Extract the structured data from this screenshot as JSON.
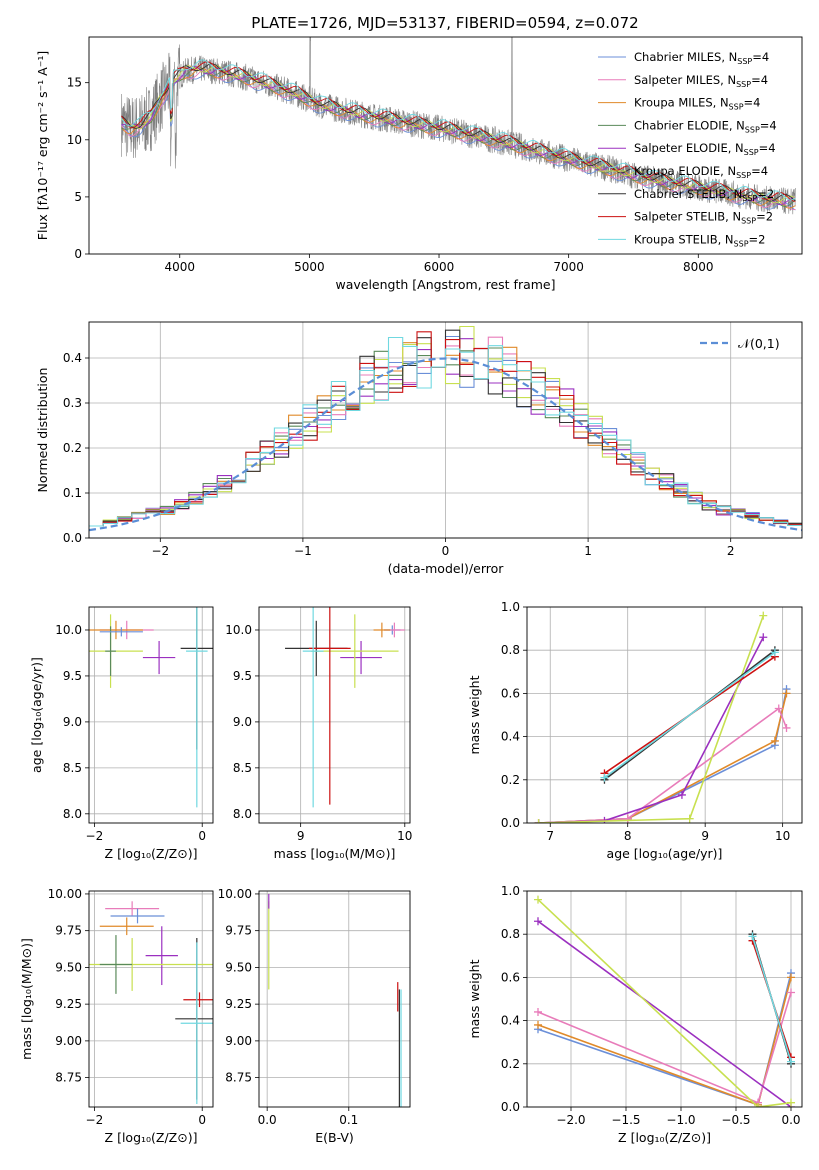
{
  "figure_title": "PLATE=1726, MJD=53137, FIBERID=0594, z=0.072",
  "colors": {
    "chabrier_miles": "#6b8fd8",
    "salpeter_miles": "#e87cba",
    "kroupa_miles": "#e08a2a",
    "chabrier_elodie": "#5a8a5a",
    "salpeter_elodie": "#9b30c0",
    "kroupa_elodie": "#c8e050",
    "chabrier_stelib": "#333333",
    "salpeter_stelib": "#cc1111",
    "kroupa_stelib": "#70d8e0",
    "normal": "#5b8ed6",
    "data": "#808080"
  },
  "legend_spectrum": [
    {
      "key": "chabrier_miles",
      "label": "Chabrier MILES, N",
      "sub": "SSP",
      "suffix": "=4"
    },
    {
      "key": "salpeter_miles",
      "label": "Salpeter MILES, N",
      "sub": "SSP",
      "suffix": "=4"
    },
    {
      "key": "kroupa_miles",
      "label": "Kroupa MILES, N",
      "sub": "SSP",
      "suffix": "=4"
    },
    {
      "key": "chabrier_elodie",
      "label": "Chabrier ELODIE, N",
      "sub": "SSP",
      "suffix": "=4"
    },
    {
      "key": "salpeter_elodie",
      "label": "Salpeter ELODIE, N",
      "sub": "SSP",
      "suffix": "=4"
    },
    {
      "key": "kroupa_elodie",
      "label": "Kroupa ELODIE, N",
      "sub": "SSP",
      "suffix": "=4"
    },
    {
      "key": "chabrier_stelib",
      "label": "Chabrier STELIB, N",
      "sub": "SSP",
      "suffix": "=2"
    },
    {
      "key": "salpeter_stelib",
      "label": "Salpeter STELIB, N",
      "sub": "SSP",
      "suffix": "=2"
    },
    {
      "key": "kroupa_stelib",
      "label": "Kroupa STELIB, N",
      "sub": "SSP",
      "suffix": "=2"
    }
  ],
  "chart_data": [
    {
      "id": "spectrum",
      "type": "line",
      "title": "PLATE=1726, MJD=53137, FIBERID=0594, z=0.072",
      "xlabel": "wavelength [Angstrom, rest frame]",
      "ylabel": "Flux [fλ10⁻¹⁷ erg cm⁻² s⁻¹ A⁻¹]",
      "xlim": [
        3300,
        8800
      ],
      "ylim": [
        0,
        19
      ],
      "xticks": [
        4000,
        5000,
        6000,
        7000,
        8000
      ],
      "yticks": [
        0,
        5,
        10,
        15
      ],
      "grid": false,
      "legend": "top-right",
      "model_continuum": {
        "x": [
          3550,
          3620,
          3700,
          3780,
          3850,
          3950,
          4050,
          4150,
          4300,
          4500,
          4700,
          4900,
          5100,
          5300,
          5500,
          5700,
          5900,
          6100,
          6300,
          6500,
          6700,
          6900,
          7100,
          7300,
          7500,
          7700,
          7900,
          8100,
          8300,
          8500,
          8700
        ],
        "y": [
          11.5,
          11.0,
          11.2,
          12.0,
          13.5,
          15.2,
          16.0,
          16.2,
          16.0,
          15.5,
          14.8,
          14.0,
          13.0,
          12.5,
          12.0,
          11.6,
          11.2,
          10.8,
          10.3,
          9.8,
          9.2,
          8.6,
          8.0,
          7.5,
          6.9,
          6.4,
          6.0,
          5.6,
          5.2,
          4.8,
          4.6
        ]
      }
    },
    {
      "id": "residuals",
      "type": "area",
      "xlabel": "(data-model)/error",
      "ylabel": "Normed distribution",
      "xlim": [
        -2.5,
        2.5
      ],
      "ylim": [
        0,
        0.48
      ],
      "xticks": [
        -2,
        -1,
        0,
        1,
        2
      ],
      "yticks": [
        0.0,
        0.1,
        0.2,
        0.3,
        0.4
      ],
      "grid": true,
      "legend": "top-right",
      "legend_label": "𝒩(0,1)",
      "bin_width": 0.1
    },
    {
      "id": "age_vs_Z",
      "type": "scatter",
      "xlabel": "Z [log₁₀(Z/Z⊙)]",
      "ylabel": "age  [log₁₀(age/yr)]",
      "xlim": [
        -2.1,
        0.2
      ],
      "ylim": [
        7.9,
        10.25
      ],
      "xticks": [
        -2,
        0
      ],
      "yticks": [
        8.0,
        8.5,
        9.0,
        9.5,
        10.0
      ],
      "grid": true,
      "points": [
        {
          "key": "salpeter_miles",
          "x": -1.4,
          "xerr": 0.5,
          "y": 10.0,
          "yerr": 0.1
        },
        {
          "key": "kroupa_miles",
          "x": -1.6,
          "xerr": 0.5,
          "y": 10.0,
          "yerr": 0.1
        },
        {
          "key": "salpeter_elodie",
          "x": -0.8,
          "xerr": 0.3,
          "y": 9.7,
          "yerr": 0.18
        },
        {
          "key": "kroupa_elodie",
          "x": -1.7,
          "xerr": 0.6,
          "y": 9.77,
          "yerr": 0.4
        },
        {
          "key": "chabrier_elodie",
          "x": -1.7,
          "xerr": 0.1,
          "y": 9.77,
          "yerr": 0.27
        },
        {
          "key": "chabrier_stelib",
          "x": -0.1,
          "xerr": 0.3,
          "y": 9.8,
          "yerr": 1.1
        },
        {
          "key": "kroupa_stelib",
          "x": -0.1,
          "xerr": 0.2,
          "y": 9.77,
          "yerr": 1.7
        },
        {
          "key": "chabrier_miles",
          "x": -1.5,
          "xerr": 0.4,
          "y": 9.98,
          "yerr": 0.05
        }
      ]
    },
    {
      "id": "age_vs_mass",
      "type": "scatter",
      "xlabel": "mass [log₁₀(M/M⊙)]",
      "ylabel": "",
      "xlim": [
        8.6,
        10.05
      ],
      "ylim": [
        7.9,
        10.25
      ],
      "xticks": [
        9,
        10
      ],
      "yticks": [
        8.0,
        8.5,
        9.0,
        9.5,
        10.0
      ],
      "grid": true,
      "points": [
        {
          "key": "chabrier_miles",
          "x": 9.88,
          "xerr": 0.08,
          "y": 10.0,
          "yerr": 0.05
        },
        {
          "key": "salpeter_miles",
          "x": 9.9,
          "xerr": 0.1,
          "y": 10.0,
          "yerr": 0.08
        },
        {
          "key": "kroupa_miles",
          "x": 9.78,
          "xerr": 0.08,
          "y": 10.0,
          "yerr": 0.08
        },
        {
          "key": "salpeter_elodie",
          "x": 9.58,
          "xerr": 0.2,
          "y": 9.7,
          "yerr": 0.18
        },
        {
          "key": "kroupa_elodie",
          "x": 9.52,
          "xerr": 0.42,
          "y": 9.77,
          "yerr": 0.4
        },
        {
          "key": "chabrier_stelib",
          "x": 9.15,
          "xerr": 0.3,
          "y": 9.8,
          "yerr": 0.3
        },
        {
          "key": "salpeter_stelib",
          "x": 9.28,
          "xerr": 0.2,
          "y": 9.8,
          "yerr": 1.7
        },
        {
          "key": "kroupa_stelib",
          "x": 9.12,
          "xerr": 0.1,
          "y": 9.77,
          "yerr": 1.7
        }
      ]
    },
    {
      "id": "massweight_vs_age",
      "type": "line",
      "xlabel": "age  [log₁₀(age/yr)]",
      "ylabel": "mass weight",
      "xlim": [
        6.7,
        10.25
      ],
      "ylim": [
        0,
        1.0
      ],
      "xticks": [
        7,
        8,
        9,
        10
      ],
      "yticks": [
        0.0,
        0.2,
        0.4,
        0.6,
        0.8,
        1.0
      ],
      "grid": true,
      "series": [
        {
          "key": "chabrier_miles",
          "x": [
            6.85,
            8.0,
            9.9,
            10.05
          ],
          "y": [
            0.0,
            0.02,
            0.36,
            0.62
          ]
        },
        {
          "key": "kroupa_miles",
          "x": [
            6.85,
            8.0,
            9.9,
            10.05
          ],
          "y": [
            0.0,
            0.02,
            0.38,
            0.6
          ]
        },
        {
          "key": "salpeter_miles",
          "x": [
            6.85,
            8.0,
            9.95,
            10.05
          ],
          "y": [
            0.0,
            0.02,
            0.53,
            0.44
          ]
        },
        {
          "key": "salpeter_elodie",
          "x": [
            6.85,
            7.7,
            8.7,
            9.75
          ],
          "y": [
            0.0,
            0.01,
            0.13,
            0.86
          ]
        },
        {
          "key": "kroupa_elodie",
          "x": [
            6.85,
            8.8,
            9.75
          ],
          "y": [
            0.0,
            0.02,
            0.96
          ]
        },
        {
          "key": "chabrier_stelib",
          "x": [
            7.7,
            9.9
          ],
          "y": [
            0.2,
            0.8
          ]
        },
        {
          "key": "salpeter_stelib",
          "x": [
            7.7,
            9.9
          ],
          "y": [
            0.23,
            0.77
          ]
        },
        {
          "key": "kroupa_stelib",
          "x": [
            7.7,
            9.9
          ],
          "y": [
            0.21,
            0.79
          ]
        }
      ]
    },
    {
      "id": "mass_vs_Z",
      "type": "scatter",
      "xlabel": "Z [log₁₀(Z/Z⊙)]",
      "ylabel": "mass [log₁₀(M/M⊙)]",
      "xlim": [
        -2.1,
        0.2
      ],
      "ylim": [
        8.55,
        10.02
      ],
      "xticks": [
        -2,
        0
      ],
      "yticks": [
        8.75,
        9.0,
        9.25,
        9.5,
        9.75,
        10.0
      ],
      "grid": true,
      "points": [
        {
          "key": "salpeter_miles",
          "x": -1.3,
          "xerr": 0.5,
          "y": 9.9,
          "yerr": 0.05
        },
        {
          "key": "chabrier_miles",
          "x": -1.2,
          "xerr": 0.5,
          "y": 9.85,
          "yerr": 0.05
        },
        {
          "key": "kroupa_miles",
          "x": -1.4,
          "xerr": 0.5,
          "y": 9.78,
          "yerr": 0.06
        },
        {
          "key": "salpeter_elodie",
          "x": -0.75,
          "xerr": 0.3,
          "y": 9.58,
          "yerr": 0.2
        },
        {
          "key": "kroupa_elodie",
          "x": -1.3,
          "xerr": 1.6,
          "y": 9.52,
          "yerr": 0.18
        },
        {
          "key": "chabrier_elodie",
          "x": -1.6,
          "xerr": 0.3,
          "y": 9.52,
          "yerr": 0.2
        },
        {
          "key": "salpeter_stelib",
          "x": -0.05,
          "xerr": 0.3,
          "y": 9.28,
          "yerr": 0.05
        },
        {
          "key": "chabrier_stelib",
          "x": -0.1,
          "xerr": 0.4,
          "y": 9.15,
          "yerr": 0.55
        },
        {
          "key": "kroupa_stelib",
          "x": -0.1,
          "xerr": 0.3,
          "y": 9.12,
          "yerr": 0.55
        }
      ]
    },
    {
      "id": "mass_vs_EBV",
      "type": "scatter",
      "xlabel": "E(B-V)",
      "ylabel": "",
      "xlim": [
        -0.01,
        0.175
      ],
      "ylim": [
        8.55,
        10.02
      ],
      "xticks": [
        0.0,
        0.1
      ],
      "yticks": [
        8.75,
        9.0,
        9.25,
        9.5,
        9.75,
        10.0
      ],
      "grid": true,
      "points": [
        {
          "key": "kroupa_elodie",
          "x": 0.002,
          "xerr": 0,
          "y": 9.65,
          "yerr": 0.3
        },
        {
          "key": "salpeter_elodie",
          "x": 0.002,
          "xerr": 0,
          "y": 9.95,
          "yerr": 0.05
        },
        {
          "key": "salpeter_stelib",
          "x": 0.16,
          "xerr": 0,
          "y": 9.3,
          "yerr": 0.1
        },
        {
          "key": "chabrier_stelib",
          "x": 0.162,
          "xerr": 0,
          "y": 8.95,
          "yerr": 0.4
        },
        {
          "key": "kroupa_stelib",
          "x": 0.164,
          "xerr": 0,
          "y": 8.95,
          "yerr": 0.4
        }
      ]
    },
    {
      "id": "massweight_vs_Z",
      "type": "line",
      "xlabel": "Z [log₁₀(Z/Z⊙)]",
      "ylabel": "mass weight",
      "xlim": [
        -2.4,
        0.1
      ],
      "ylim": [
        0,
        1.0
      ],
      "xticks": [
        -2.0,
        -1.5,
        -1.0,
        -0.5,
        0.0
      ],
      "yticks": [
        0.0,
        0.2,
        0.4,
        0.6,
        0.8,
        1.0
      ],
      "grid": true,
      "series": [
        {
          "key": "chabrier_miles",
          "x": [
            -2.3,
            -0.3,
            0.0
          ],
          "y": [
            0.36,
            0.01,
            0.62
          ]
        },
        {
          "key": "kroupa_miles",
          "x": [
            -2.3,
            -0.3,
            0.0
          ],
          "y": [
            0.38,
            0.01,
            0.6
          ]
        },
        {
          "key": "salpeter_miles",
          "x": [
            -2.3,
            -0.3,
            0.0
          ],
          "y": [
            0.44,
            0.02,
            0.53
          ]
        },
        {
          "key": "salpeter_elodie",
          "x": [
            -2.3,
            0.0
          ],
          "y": [
            0.86,
            0.0
          ]
        },
        {
          "key": "kroupa_elodie",
          "x": [
            -2.3,
            -0.3,
            0.0
          ],
          "y": [
            0.96,
            0.0,
            0.02
          ]
        },
        {
          "key": "chabrier_stelib",
          "x": [
            -0.35,
            0.0
          ],
          "y": [
            0.8,
            0.2
          ]
        },
        {
          "key": "salpeter_stelib",
          "x": [
            -0.35,
            0.0
          ],
          "y": [
            0.77,
            0.23
          ]
        },
        {
          "key": "kroupa_stelib",
          "x": [
            -0.35,
            0.0
          ],
          "y": [
            0.79,
            0.21
          ]
        }
      ]
    }
  ]
}
